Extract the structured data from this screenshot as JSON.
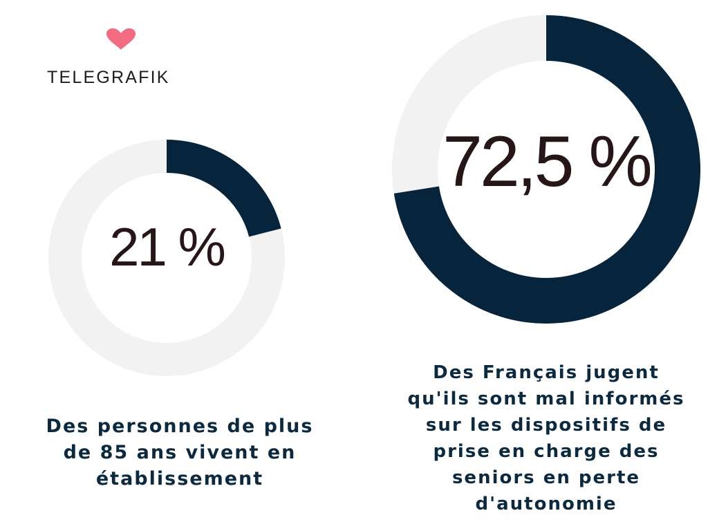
{
  "brand": {
    "name": "TELEGRAFIK",
    "heart_color": "#f26b80"
  },
  "colors": {
    "ring_fill": "#06243b",
    "ring_track": "#f2f2f2",
    "percent_text": "#261618",
    "caption_text": "#0c2a3f"
  },
  "chart_data": [
    {
      "type": "pie",
      "variant": "donut",
      "value": 21,
      "max": 100,
      "label": "21 %",
      "caption_lines": [
        "Des personnes de plus",
        "de 85 ans vivent en",
        "établissement"
      ]
    },
    {
      "type": "pie",
      "variant": "donut",
      "value": 72.5,
      "max": 100,
      "label": "72,5 %",
      "caption_lines": [
        "Des Français jugent",
        "qu'ils sont mal informés",
        "sur les dispositifs de",
        "prise en charge des",
        "seniors en perte",
        "d'autonomie"
      ]
    }
  ]
}
